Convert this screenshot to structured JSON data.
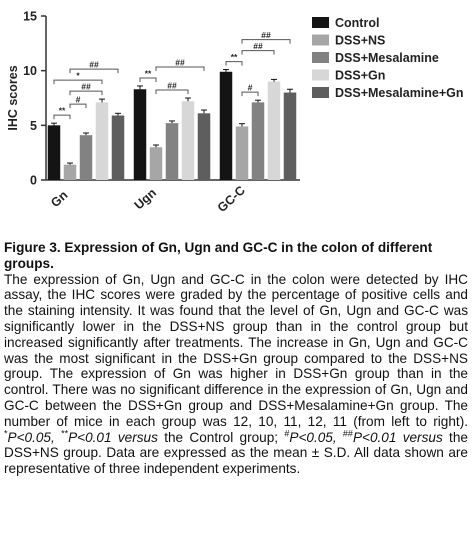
{
  "chart_data": {
    "type": "bar",
    "ylabel": "IHC scores",
    "ylim": [
      0,
      15
    ],
    "yticks": [
      0,
      5,
      10,
      15
    ],
    "categories": [
      "Gn",
      "Ugn",
      "GC-C"
    ],
    "series": [
      {
        "name": "Control",
        "color": "#141414",
        "values": [
          5.0,
          8.3,
          9.9
        ],
        "errors": [
          0.2,
          0.3,
          0.2
        ]
      },
      {
        "name": "DSS+NS",
        "color": "#a6a6a6",
        "values": [
          1.4,
          3.0,
          4.9
        ],
        "errors": [
          0.15,
          0.2,
          0.25
        ]
      },
      {
        "name": "DSS+Mesalamine",
        "color": "#828282",
        "values": [
          4.1,
          5.2,
          7.1
        ],
        "errors": [
          0.2,
          0.2,
          0.2
        ]
      },
      {
        "name": "DSS+Gn",
        "color": "#d7d7d7",
        "values": [
          7.1,
          7.2,
          9.0
        ],
        "errors": [
          0.3,
          0.3,
          0.2
        ]
      },
      {
        "name": "DSS+Mesalamine+Gn",
        "color": "#5e5e5e",
        "values": [
          5.9,
          6.1,
          8.0
        ],
        "errors": [
          0.2,
          0.3,
          0.3
        ]
      }
    ],
    "annotations": [
      {
        "group": "Gn",
        "from": "Control",
        "to": "DSS+NS",
        "label": "**"
      },
      {
        "group": "Gn",
        "from": "DSS+NS",
        "to": "DSS+Mesalamine",
        "label": "#"
      },
      {
        "group": "Gn",
        "from": "DSS+NS",
        "to": "DSS+Gn",
        "label": "##"
      },
      {
        "group": "Gn",
        "from": "Control",
        "to": "DSS+Gn",
        "label": "*"
      },
      {
        "group": "Gn",
        "from": "DSS+NS",
        "to": "DSS+Mesalamine+Gn",
        "label": "##"
      },
      {
        "group": "Ugn",
        "from": "Control",
        "to": "DSS+NS",
        "label": "**"
      },
      {
        "group": "Ugn",
        "from": "DSS+NS",
        "to": "DSS+Gn",
        "label": "##"
      },
      {
        "group": "Ugn",
        "from": "DSS+NS",
        "to": "DSS+Mesalamine+Gn",
        "label": "##"
      },
      {
        "group": "GC-C",
        "from": "Control",
        "to": "DSS+NS",
        "label": "**"
      },
      {
        "group": "GC-C",
        "from": "DSS+NS",
        "to": "DSS+Mesalamine",
        "label": "#"
      },
      {
        "group": "GC-C",
        "from": "DSS+NS",
        "to": "DSS+Gn",
        "label": "##"
      },
      {
        "group": "GC-C",
        "from": "DSS+NS",
        "to": "DSS+Mesalamine+Gn",
        "label": "##"
      }
    ],
    "legend_position": "right",
    "grid": false
  },
  "caption": {
    "title": "Figure 3. Expression of Gn, Ugn and GC-C in the colon of different groups.",
    "body_1": "The expression of Gn, Ugn and GC-C in the colon were detected by IHC assay, the IHC scores were graded by the percentage of positive cells and the staining intensity. It was found that the level of Gn, Ugn and GC-C was significantly lower in the DSS+NS group than in the control group but increased significantly after treatments. The increase in Gn, Ugn and GC-C was the most significant in the DSS+Gn group compared to the DSS+NS group. The expression of Gn was higher in DSS+Gn group than in the control. There was no significant difference in the expression of Gn, Ugn and GC-C between the DSS+Gn group and DSS+Mesalamine+Gn group. The number of mice in each group was 12, 10, 11, 12, 11 (from left to right). ",
    "sig1_mark": "*",
    "sig1_p": "P<0.05, ",
    "sig2_mark": "**",
    "sig2_p": "P<0.01 ",
    "versus_1": "versus",
    "control_text": " the Control group; ",
    "sig3_mark": "#",
    "sig3_p": "P<0.05, ",
    "sig4_mark": "##",
    "sig4_p": "P<0.01 ",
    "versus_2": "versus",
    "body_2": " the DSS+NS group. Data are expressed as the mean ± S.D. All data shown are representative of three independent experiments."
  }
}
